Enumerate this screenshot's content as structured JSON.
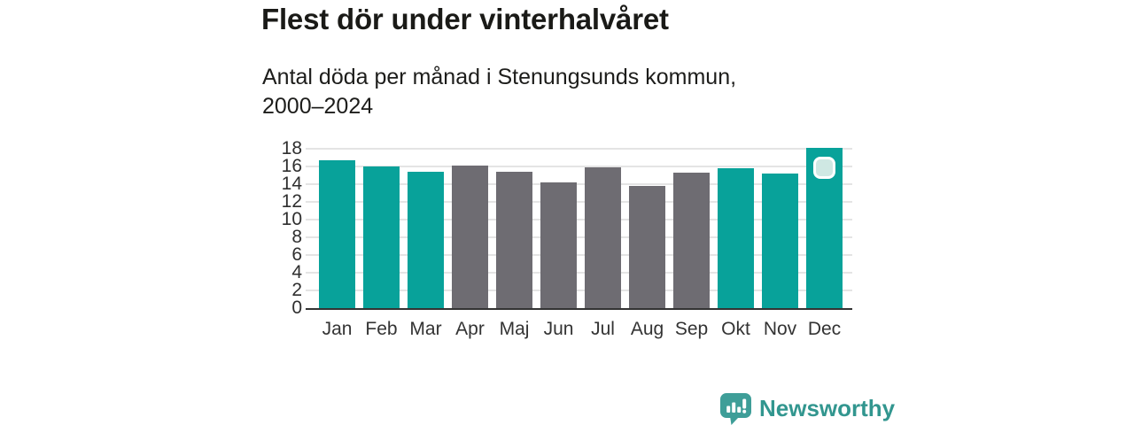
{
  "header": {
    "title": "Flest dör under vinterhalvåret",
    "subtitle": "Antal döda per månad i Stenungsunds kommun, 2000–2024"
  },
  "chart_data": {
    "type": "bar",
    "title": "Flest dör under vinterhalvåret",
    "subtitle": "Antal döda per månad i Stenungsunds kommun, 2000–2024",
    "categories": [
      "Jan",
      "Feb",
      "Mar",
      "Apr",
      "Maj",
      "Jun",
      "Jul",
      "Aug",
      "Sep",
      "Okt",
      "Nov",
      "Dec"
    ],
    "values": [
      16.7,
      16.0,
      15.4,
      16.1,
      15.4,
      14.2,
      15.9,
      13.8,
      15.3,
      15.8,
      15.2,
      18.1
    ],
    "highlighted": [
      true,
      true,
      true,
      false,
      false,
      false,
      false,
      false,
      false,
      true,
      true,
      true
    ],
    "xlabel": "",
    "ylabel": "",
    "ylim": [
      0,
      18
    ],
    "yticks": [
      0,
      2,
      4,
      6,
      8,
      10,
      12,
      14,
      16,
      18
    ],
    "grid": "horizontal",
    "legend": "none",
    "colors": {
      "highlight": "#08a29a",
      "default": "#6e6c72",
      "gridline": "#e4e4e4",
      "axis_line": "#333333"
    },
    "selection_marker": {
      "category": "Dec",
      "fill": "#cfe8e3",
      "border": "#ffffff"
    }
  },
  "brand": {
    "name": "Newsworthy",
    "icon": "bar-chart-speech-bubble-icon",
    "icon_color": "#3e9e98",
    "text_color": "#32968f"
  }
}
